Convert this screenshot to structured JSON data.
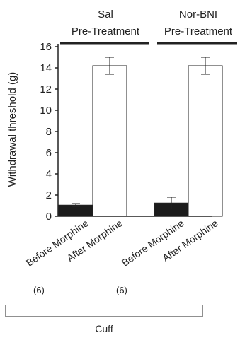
{
  "chart_data": {
    "type": "bar",
    "ylabel": "Withdrawal threshold (g)",
    "ylim": [
      0,
      16
    ],
    "yticks": [
      0,
      2,
      4,
      6,
      8,
      10,
      12,
      14,
      16
    ],
    "groups": [
      {
        "header": [
          "Sal",
          "Pre-Treatment"
        ],
        "n_label": "(6)"
      },
      {
        "header": [
          "Nor-BNI",
          "Pre-Treatment"
        ],
        "n_label": "(6)"
      }
    ],
    "categories": [
      "Before Morphine",
      "After Morphine",
      "Before Morphine",
      "After Morphine"
    ],
    "values": [
      1.05,
      14.2,
      1.25,
      14.2
    ],
    "errors": [
      0.15,
      0.8,
      0.55,
      0.8
    ],
    "bar_fills": [
      "#1c1c1c",
      "#ffffff",
      "#1c1c1c",
      "#ffffff"
    ],
    "bottom_label": "Cuff",
    "colors": {
      "axis": "#222222",
      "dark_bar": "#1c1c1c",
      "light_bar": "#ffffff"
    }
  }
}
